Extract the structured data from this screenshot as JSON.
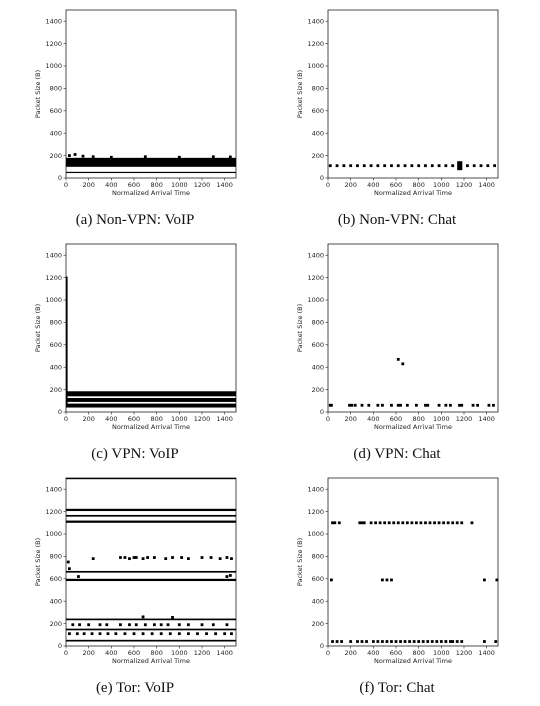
{
  "chart_data": [
    {
      "type": "scatter",
      "caption": "(a) Non-VPN: VoIP",
      "xlabel": "Normalized Arrival Time",
      "ylabel": "Packet Size (B)",
      "xlim": [
        0,
        1500
      ],
      "ylim": [
        0,
        1500
      ],
      "xticks": [
        0,
        200,
        400,
        600,
        800,
        1000,
        1200,
        1400
      ],
      "yticks": [
        0,
        200,
        400,
        600,
        800,
        1000,
        1200,
        1400
      ],
      "bands": [
        {
          "x0": 0,
          "x1": 1500,
          "y0": 100,
          "y1": 180
        },
        {
          "x0": 0,
          "x1": 1500,
          "y0": 45,
          "y1": 55
        }
      ],
      "points": [
        [
          30,
          200
        ],
        [
          80,
          210
        ],
        [
          150,
          195
        ],
        [
          240,
          190
        ],
        [
          400,
          185
        ],
        [
          700,
          190
        ],
        [
          1000,
          185
        ],
        [
          1300,
          190
        ],
        [
          1450,
          188
        ]
      ]
    },
    {
      "type": "scatter",
      "caption": "(b) Non-VPN: Chat",
      "xlabel": "Normalized Arrival Time",
      "ylabel": "Packet Size (B)",
      "xlim": [
        0,
        1500
      ],
      "ylim": [
        0,
        1500
      ],
      "xticks": [
        0,
        200,
        400,
        600,
        800,
        1000,
        1200,
        1400
      ],
      "yticks": [
        0,
        200,
        400,
        600,
        800,
        1000,
        1200,
        1400
      ],
      "bands": [
        {
          "x0": 1140,
          "x1": 1185,
          "y0": 70,
          "y1": 150
        }
      ],
      "points": [
        [
          20,
          110
        ],
        [
          80,
          110
        ],
        [
          140,
          110
        ],
        [
          200,
          110
        ],
        [
          260,
          110
        ],
        [
          320,
          110
        ],
        [
          380,
          110
        ],
        [
          440,
          110
        ],
        [
          500,
          110
        ],
        [
          560,
          110
        ],
        [
          620,
          110
        ],
        [
          680,
          110
        ],
        [
          740,
          110
        ],
        [
          800,
          110
        ],
        [
          860,
          110
        ],
        [
          920,
          110
        ],
        [
          980,
          110
        ],
        [
          1040,
          110
        ],
        [
          1100,
          110
        ],
        [
          1230,
          110
        ],
        [
          1290,
          110
        ],
        [
          1350,
          110
        ],
        [
          1410,
          110
        ],
        [
          1470,
          110
        ]
      ]
    },
    {
      "type": "scatter",
      "caption": "(c) VPN: VoIP",
      "xlabel": "Normalized Arrival Time",
      "ylabel": "Packet Size (B)",
      "xlim": [
        0,
        1500
      ],
      "ylim": [
        0,
        1500
      ],
      "xticks": [
        0,
        200,
        400,
        600,
        800,
        1000,
        1200,
        1400
      ],
      "yticks": [
        0,
        200,
        400,
        600,
        800,
        1000,
        1200,
        1400
      ],
      "bands": [
        {
          "x0": 0,
          "x1": 1500,
          "y0": 140,
          "y1": 185
        },
        {
          "x0": 0,
          "x1": 1500,
          "y0": 90,
          "y1": 125
        },
        {
          "x0": 0,
          "x1": 1500,
          "y0": 40,
          "y1": 75
        },
        {
          "x0": 0,
          "x1": 14,
          "y0": 60,
          "y1": 1210
        }
      ],
      "points": []
    },
    {
      "type": "scatter",
      "caption": "(d) VPN: Chat",
      "xlabel": "Normalized Arrival Time",
      "ylabel": "Packet Size (B)",
      "xlim": [
        0,
        1500
      ],
      "ylim": [
        0,
        1500
      ],
      "xticks": [
        0,
        200,
        400,
        600,
        800,
        1000,
        1200,
        1400
      ],
      "yticks": [
        0,
        200,
        400,
        600,
        800,
        1000,
        1200,
        1400
      ],
      "bands": [],
      "points": [
        [
          20,
          60
        ],
        [
          30,
          60
        ],
        [
          190,
          60
        ],
        [
          210,
          60
        ],
        [
          240,
          60
        ],
        [
          300,
          60
        ],
        [
          360,
          60
        ],
        [
          440,
          60
        ],
        [
          480,
          60
        ],
        [
          560,
          60
        ],
        [
          620,
          60
        ],
        [
          640,
          60
        ],
        [
          700,
          60
        ],
        [
          780,
          60
        ],
        [
          860,
          60
        ],
        [
          880,
          60
        ],
        [
          980,
          60
        ],
        [
          1040,
          60
        ],
        [
          1080,
          60
        ],
        [
          1160,
          60
        ],
        [
          1180,
          60
        ],
        [
          1280,
          60
        ],
        [
          1320,
          60
        ],
        [
          1420,
          60
        ],
        [
          1460,
          60
        ],
        [
          620,
          470
        ],
        [
          660,
          430
        ]
      ]
    },
    {
      "type": "scatter",
      "caption": "(e) Tor: VoIP",
      "xlabel": "Normalized Arrival Time",
      "ylabel": "Packet Size (B)",
      "xlim": [
        0,
        1500
      ],
      "ylim": [
        0,
        1500
      ],
      "xticks": [
        0,
        200,
        400,
        600,
        800,
        1000,
        1200,
        1400
      ],
      "yticks": [
        0,
        200,
        400,
        600,
        800,
        1000,
        1200,
        1400
      ],
      "bands": [
        {
          "x0": 0,
          "x1": 1500,
          "y0": 1490,
          "y1": 1505
        },
        {
          "x0": 0,
          "x1": 1500,
          "y0": 1205,
          "y1": 1225
        },
        {
          "x0": 0,
          "x1": 1500,
          "y0": 1155,
          "y1": 1170
        },
        {
          "x0": 0,
          "x1": 1500,
          "y0": 1100,
          "y1": 1120
        },
        {
          "x0": 0,
          "x1": 1500,
          "y0": 655,
          "y1": 670
        },
        {
          "x0": 0,
          "x1": 1500,
          "y0": 580,
          "y1": 600
        },
        {
          "x0": 0,
          "x1": 1500,
          "y0": 230,
          "y1": 245
        },
        {
          "x0": 0,
          "x1": 1500,
          "y0": 140,
          "y1": 155
        },
        {
          "x0": 0,
          "x1": 1500,
          "y0": 40,
          "y1": 55
        }
      ],
      "points": [
        [
          20,
          750
        ],
        [
          30,
          690
        ],
        [
          240,
          780
        ],
        [
          480,
          790
        ],
        [
          520,
          790
        ],
        [
          560,
          780
        ],
        [
          600,
          790
        ],
        [
          620,
          790
        ],
        [
          680,
          780
        ],
        [
          720,
          790
        ],
        [
          780,
          790
        ],
        [
          880,
          780
        ],
        [
          940,
          790
        ],
        [
          1020,
          790
        ],
        [
          1080,
          780
        ],
        [
          1200,
          790
        ],
        [
          1280,
          790
        ],
        [
          1360,
          780
        ],
        [
          1420,
          790
        ],
        [
          1460,
          780
        ],
        [
          110,
          620
        ],
        [
          1420,
          620
        ],
        [
          1450,
          630
        ],
        [
          680,
          260
        ],
        [
          940,
          255
        ],
        [
          60,
          190
        ],
        [
          120,
          190
        ],
        [
          200,
          190
        ],
        [
          300,
          190
        ],
        [
          360,
          190
        ],
        [
          480,
          190
        ],
        [
          560,
          190
        ],
        [
          620,
          190
        ],
        [
          700,
          190
        ],
        [
          780,
          190
        ],
        [
          840,
          190
        ],
        [
          900,
          190
        ],
        [
          1000,
          190
        ],
        [
          1080,
          190
        ],
        [
          1200,
          190
        ],
        [
          1300,
          190
        ],
        [
          1420,
          190
        ],
        [
          30,
          110
        ],
        [
          100,
          110
        ],
        [
          160,
          110
        ],
        [
          230,
          110
        ],
        [
          300,
          110
        ],
        [
          370,
          110
        ],
        [
          440,
          110
        ],
        [
          520,
          110
        ],
        [
          600,
          110
        ],
        [
          680,
          110
        ],
        [
          760,
          110
        ],
        [
          840,
          110
        ],
        [
          920,
          110
        ],
        [
          1000,
          110
        ],
        [
          1080,
          110
        ],
        [
          1160,
          110
        ],
        [
          1240,
          110
        ],
        [
          1320,
          110
        ],
        [
          1400,
          110
        ],
        [
          1460,
          110
        ]
      ]
    },
    {
      "type": "scatter",
      "caption": "(f) Tor: Chat",
      "xlabel": "Normalized Arrival Time",
      "ylabel": "Packet Size (B)",
      "xlim": [
        0,
        1500
      ],
      "ylim": [
        0,
        1500
      ],
      "xticks": [
        0,
        200,
        400,
        600,
        800,
        1000,
        1200,
        1400
      ],
      "yticks": [
        0,
        200,
        400,
        600,
        800,
        1000,
        1200,
        1400
      ],
      "bands": [],
      "points": [
        [
          40,
          1100
        ],
        [
          60,
          1100
        ],
        [
          100,
          1100
        ],
        [
          280,
          1100
        ],
        [
          300,
          1100
        ],
        [
          320,
          1100
        ],
        [
          380,
          1100
        ],
        [
          420,
          1100
        ],
        [
          460,
          1100
        ],
        [
          500,
          1100
        ],
        [
          540,
          1100
        ],
        [
          580,
          1100
        ],
        [
          620,
          1100
        ],
        [
          660,
          1100
        ],
        [
          700,
          1100
        ],
        [
          740,
          1100
        ],
        [
          780,
          1100
        ],
        [
          820,
          1100
        ],
        [
          860,
          1100
        ],
        [
          900,
          1100
        ],
        [
          940,
          1100
        ],
        [
          980,
          1100
        ],
        [
          1020,
          1100
        ],
        [
          1060,
          1100
        ],
        [
          1100,
          1100
        ],
        [
          1140,
          1100
        ],
        [
          1180,
          1100
        ],
        [
          1270,
          1100
        ],
        [
          30,
          590
        ],
        [
          480,
          590
        ],
        [
          520,
          590
        ],
        [
          560,
          590
        ],
        [
          1380,
          590
        ],
        [
          1490,
          590
        ],
        [
          40,
          40
        ],
        [
          80,
          40
        ],
        [
          120,
          40
        ],
        [
          200,
          40
        ],
        [
          260,
          40
        ],
        [
          300,
          40
        ],
        [
          340,
          40
        ],
        [
          400,
          40
        ],
        [
          440,
          40
        ],
        [
          480,
          40
        ],
        [
          520,
          40
        ],
        [
          560,
          40
        ],
        [
          600,
          40
        ],
        [
          640,
          40
        ],
        [
          680,
          40
        ],
        [
          720,
          40
        ],
        [
          760,
          40
        ],
        [
          800,
          40
        ],
        [
          840,
          40
        ],
        [
          880,
          40
        ],
        [
          920,
          40
        ],
        [
          960,
          40
        ],
        [
          1000,
          40
        ],
        [
          1040,
          40
        ],
        [
          1080,
          40
        ],
        [
          1100,
          40
        ],
        [
          1140,
          40
        ],
        [
          1180,
          40
        ],
        [
          1380,
          40
        ],
        [
          1480,
          40
        ]
      ]
    }
  ]
}
